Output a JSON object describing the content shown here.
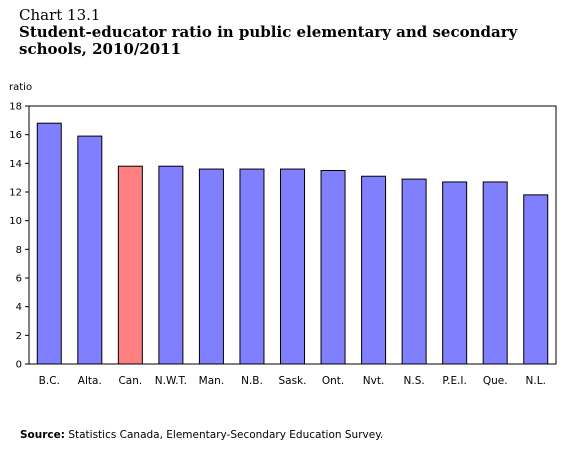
{
  "title": {
    "line1": "Chart 13.1",
    "line2": "Student-educator ratio in public elementary and secondary",
    "line3": "schools, 2010/2011"
  },
  "source": {
    "label": "Source:",
    "text": "Statistics Canada, Elementary-Secondary Education Survey."
  },
  "colors": {
    "bar": "#8080ff",
    "highlight": "#ff8080",
    "axis": "#000000"
  },
  "chart_data": {
    "type": "bar",
    "ylabel": "ratio",
    "xlabel": "",
    "ylim": [
      0,
      18
    ],
    "yticks": [
      0,
      2,
      4,
      6,
      8,
      10,
      12,
      14,
      16,
      18
    ],
    "grid": false,
    "categories": [
      "B.C.",
      "Alta.",
      "Can.",
      "N.W.T.",
      "Man.",
      "N.B.",
      "Sask.",
      "Ont.",
      "Nvt.",
      "N.S.",
      "P.E.I.",
      "Que.",
      "N.L."
    ],
    "values": [
      16.8,
      15.9,
      13.8,
      13.8,
      13.6,
      13.6,
      13.6,
      13.5,
      13.1,
      12.9,
      12.7,
      12.7,
      11.8
    ],
    "highlight_category": "Can."
  }
}
